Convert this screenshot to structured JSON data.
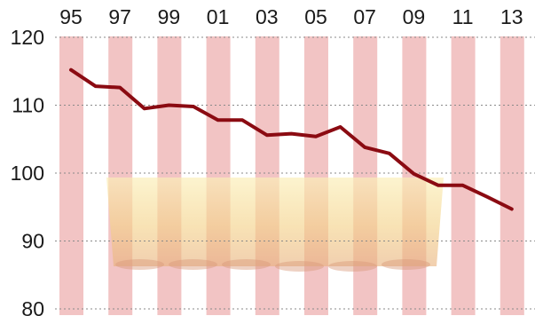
{
  "chart_data": {
    "type": "line",
    "title": "",
    "xlabel": "",
    "ylabel": "",
    "x_tick_labels": [
      "95",
      "97",
      "99",
      "01",
      "03",
      "05",
      "07",
      "09",
      "11",
      "13"
    ],
    "x_tick_years": [
      1995,
      1997,
      1999,
      2001,
      2003,
      2005,
      2007,
      2009,
      2011,
      2013
    ],
    "xlim": [
      1994.2,
      2013.9
    ],
    "ylim": [
      80,
      120
    ],
    "y_ticks": [
      80,
      90,
      100,
      110,
      120
    ],
    "grid": true,
    "shaded_years": [
      1995,
      1996,
      1997,
      1998,
      1999,
      2000,
      2001,
      2002,
      2003,
      2004,
      2005,
      2006,
      2007,
      2008,
      2009,
      2010,
      2011,
      2012,
      2013
    ],
    "series": [
      {
        "name": "",
        "x": [
          1995,
          1996,
          1997,
          1998,
          1999,
          2000,
          2001,
          2002,
          2003,
          2004,
          2005,
          2006,
          2007,
          2008,
          2009,
          2010,
          2011,
          2012,
          2013
        ],
        "values": [
          115.2,
          112.8,
          112.6,
          109.5,
          110.0,
          109.8,
          107.8,
          107.8,
          105.6,
          105.8,
          105.4,
          106.8,
          103.8,
          102.9,
          99.9,
          98.2,
          98.2,
          96.5,
          94.7
        ]
      }
    ]
  },
  "colors": {
    "line": "#8b0b12",
    "band": "#f2c4c4",
    "grid": "#8a8a8a",
    "text": "#1a1a1a",
    "glass": "#f7dc9a",
    "background": "#ffffff"
  }
}
